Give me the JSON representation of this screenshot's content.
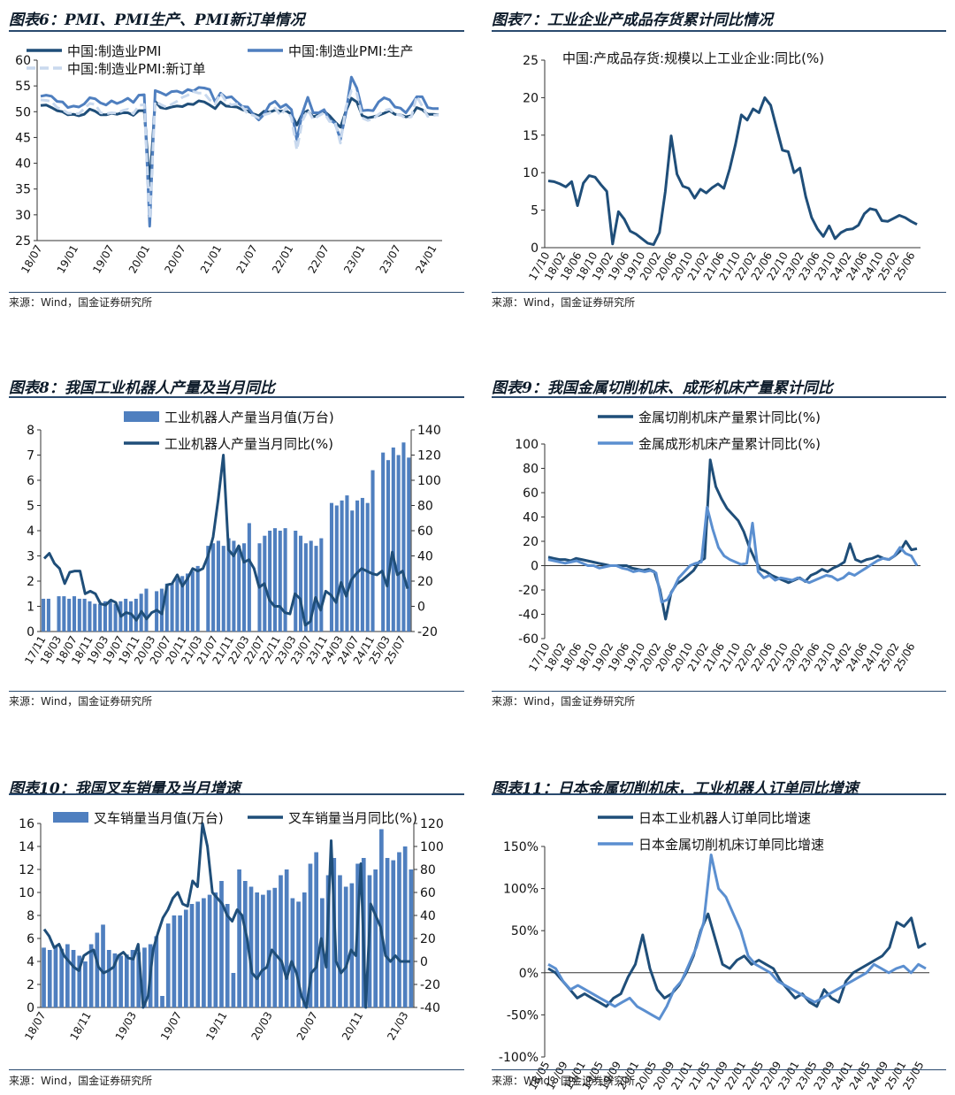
{
  "source_text": "来源：Wind，国金证券研究所",
  "colors": {
    "dark": "#1f4e79",
    "mid": "#4f7fbf",
    "light": "#c9d9ee",
    "bar": "#4f7fbf",
    "light_line": "#5b8fd0"
  },
  "chart_data": [
    {
      "id": "fig6",
      "type": "line",
      "title": "图表6：PMI、PMI生产、PMI新订单情况",
      "ylim": [
        25,
        60
      ],
      "yticks": [
        "25",
        "30",
        "35",
        "40",
        "45",
        "50",
        "55",
        "60"
      ],
      "xticks": [
        "18/07",
        "19/01",
        "19/07",
        "20/01",
        "20/07",
        "21/01",
        "21/07",
        "22/01",
        "22/07",
        "23/01",
        "23/07",
        "24/01"
      ],
      "legend": [
        "中国:制造业PMI",
        "中国:制造业PMI:生产",
        "中国:制造业PMI:新订单"
      ],
      "series": [
        {
          "name": "中国:制造业PMI",
          "values": [
            51.2,
            51.3,
            50.8,
            50.2,
            50.0,
            49.4,
            49.5,
            49.2,
            49.5,
            50.5,
            50.1,
            49.4,
            49.4,
            49.7,
            49.5,
            49.8,
            49.8,
            49.3,
            50.2,
            50.2,
            35.7,
            52.0,
            50.8,
            50.6,
            50.9,
            51.1,
            51.0,
            51.5,
            51.4,
            52.1,
            51.9,
            51.3,
            50.6,
            51.9,
            51.1,
            51.0,
            50.9,
            50.4,
            50.1,
            49.6,
            49.2,
            50.1,
            49.9,
            50.3,
            50.1,
            50.2,
            49.5,
            47.4,
            49.6,
            50.2,
            49.0,
            49.4,
            50.1,
            49.2,
            48.0,
            47.0,
            50.1,
            52.6,
            51.9,
            49.2,
            48.8,
            49.0,
            49.3,
            49.7,
            50.2,
            49.5,
            49.4,
            49.0,
            49.2,
            50.8,
            50.4,
            49.5,
            49.5,
            49.4
          ]
        },
        {
          "name": "中国:制造业PMI:生产",
          "values": [
            53.0,
            53.2,
            53.0,
            52.0,
            51.9,
            50.8,
            51.1,
            50.9,
            51.5,
            52.7,
            52.5,
            51.7,
            51.3,
            52.1,
            51.6,
            52.0,
            52.6,
            51.8,
            53.2,
            53.3,
            27.8,
            54.1,
            53.7,
            53.2,
            53.9,
            54.0,
            53.6,
            54.3,
            54.0,
            54.7,
            54.6,
            54.3,
            51.9,
            53.6,
            52.7,
            52.9,
            51.9,
            51.0,
            50.9,
            49.5,
            48.4,
            49.5,
            51.4,
            52.0,
            50.8,
            51.4,
            50.4,
            44.5,
            49.7,
            52.8,
            49.8,
            49.8,
            50.4,
            48.4,
            47.8,
            44.6,
            49.8,
            56.7,
            54.6,
            50.2,
            50.3,
            50.2,
            51.9,
            52.7,
            52.3,
            50.9,
            50.7,
            49.8,
            51.3,
            52.9,
            52.9,
            50.8,
            50.6,
            50.6
          ]
        },
        {
          "name": "中国:制造业PMI:新订单",
          "values": [
            52.3,
            52.2,
            52.0,
            50.8,
            50.4,
            49.7,
            49.7,
            49.6,
            50.6,
            51.6,
            51.4,
            49.8,
            49.6,
            49.8,
            49.7,
            50.2,
            50.5,
            49.6,
            51.2,
            51.4,
            29.3,
            52.0,
            51.4,
            50.9,
            51.4,
            52.0,
            52.8,
            53.2,
            53.9,
            53.6,
            53.6,
            52.3,
            51.5,
            53.6,
            52.0,
            51.3,
            51.5,
            50.9,
            49.6,
            49.3,
            48.8,
            49.4,
            49.7,
            50.7,
            49.3,
            50.7,
            48.8,
            42.6,
            48.2,
            50.4,
            48.5,
            49.2,
            49.8,
            48.1,
            48.1,
            43.9,
            50.9,
            54.1,
            53.6,
            48.8,
            48.3,
            48.6,
            49.5,
            50.2,
            50.5,
            49.5,
            49.4,
            48.7,
            49.0,
            53.0,
            51.1,
            49.1,
            49.3,
            49.4
          ]
        }
      ]
    },
    {
      "id": "fig7",
      "type": "line",
      "title": "图表7：工业企业产成品存货累计同比情况",
      "ylim": [
        0,
        25
      ],
      "yticks": [
        "0",
        "5",
        "10",
        "15",
        "20",
        "25"
      ],
      "xticks": [
        "17/10",
        "18/02",
        "18/06",
        "18/10",
        "19/02",
        "19/06",
        "19/10",
        "20/02",
        "20/06",
        "20/10",
        "21/02",
        "21/06",
        "21/10",
        "22/02",
        "22/06",
        "22/10",
        "23/02",
        "23/06",
        "23/10",
        "24/02",
        "24/06",
        "24/10",
        "25/02",
        "25/06"
      ],
      "legend": [
        "中国:产成品存货:规模以上工业企业:同比(%)"
      ],
      "series": [
        {
          "name": "中国:产成品存货:规模以上工业企业:同比(%)",
          "values": [
            8.9,
            8.8,
            8.5,
            8.1,
            8.8,
            5.6,
            8.6,
            9.6,
            9.4,
            8.4,
            7.5,
            0.5,
            4.8,
            3.8,
            2.2,
            1.8,
            1.2,
            0.6,
            0.4,
            2.0,
            7.5,
            14.9,
            9.8,
            8.2,
            7.9,
            6.6,
            7.8,
            7.3,
            8.0,
            8.5,
            7.9,
            10.5,
            13.8,
            17.7,
            17.0,
            18.5,
            18.0,
            20.0,
            19.0,
            16.0,
            13.0,
            12.8,
            10.0,
            10.6,
            6.8,
            4.0,
            2.5,
            1.5,
            2.9,
            1.2,
            2.0,
            2.4,
            2.5,
            3.0,
            4.5,
            5.2,
            5.0,
            3.6,
            3.5,
            3.9,
            4.3,
            4.0,
            3.5,
            3.1
          ]
        }
      ]
    },
    {
      "id": "fig8",
      "type": "bar+line",
      "title": "图表8：我国工业机器人产量及当月同比",
      "ylim": [
        0,
        8
      ],
      "y2lim": [
        -20,
        140
      ],
      "yticks": [
        "0",
        "1",
        "2",
        "3",
        "4",
        "5",
        "6",
        "7",
        "8"
      ],
      "y2ticks": [
        "-20",
        "0",
        "20",
        "40",
        "60",
        "80",
        "100",
        "120",
        "140"
      ],
      "xticks": [
        "17/11",
        "18/03",
        "18/07",
        "18/11",
        "19/03",
        "19/07",
        "19/11",
        "20/03",
        "20/07",
        "20/11",
        "21/03",
        "21/07",
        "21/11",
        "22/03",
        "22/07",
        "22/11",
        "23/03",
        "23/07",
        "23/11",
        "24/03",
        "24/07",
        "24/11",
        "25/03",
        "25/07"
      ],
      "legend": [
        "工业机器人产量当月值(万台)",
        "工业机器人产量当月同比(%)"
      ],
      "bars": {
        "name": "工业机器人产量当月值(万台)",
        "values": [
          1.3,
          1.3,
          0,
          1.4,
          1.4,
          1.3,
          1.4,
          1.3,
          1.3,
          1.2,
          1.1,
          1.1,
          1.2,
          1.2,
          1.1,
          1.2,
          1.3,
          1.2,
          1.3,
          1.5,
          1.7,
          0,
          1.6,
          1.7,
          1.9,
          1.9,
          2.1,
          2.2,
          2.3,
          2.4,
          2.6,
          0,
          3.4,
          3.5,
          3.6,
          3.4,
          3.7,
          3.6,
          3.4,
          3.5,
          4.3,
          0,
          3.5,
          3.8,
          4.0,
          4.1,
          4.0,
          4.1,
          0,
          4.0,
          3.8,
          3.5,
          3.6,
          3.4,
          3.7,
          0,
          5.1,
          5.0,
          5.2,
          5.4,
          4.8,
          5.2,
          5.3,
          5.1,
          6.4,
          0,
          7.1,
          6.8,
          7.3,
          7.0,
          7.5,
          6.9
        ]
      },
      "series": [
        {
          "name": "工业机器人产量当月同比(%)",
          "values": [
            38,
            42,
            34,
            30,
            18,
            27,
            28,
            28,
            10,
            12,
            10,
            2,
            1,
            5,
            3,
            -8,
            -5,
            -6,
            -11,
            -4,
            -10,
            -5,
            -3,
            -6,
            17,
            18,
            25,
            16,
            22,
            30,
            28,
            30,
            40,
            55,
            85,
            120,
            45,
            40,
            48,
            35,
            37,
            30,
            15,
            18,
            5,
            0,
            0,
            -5,
            -6,
            10,
            6,
            -15,
            -12,
            7,
            -3,
            12,
            9,
            3,
            19,
            8,
            21,
            26,
            30,
            28,
            26,
            25,
            28,
            16,
            43,
            25,
            28,
            14
          ]
        }
      ]
    },
    {
      "id": "fig9",
      "type": "line",
      "title": "图表9：我国金属切削机床、成形机床产量累计同比",
      "ylim": [
        -60,
        100
      ],
      "yticks": [
        "-60",
        "-40",
        "-20",
        "0",
        "20",
        "40",
        "60",
        "80",
        "100"
      ],
      "xticks": [
        "17/10",
        "18/02",
        "18/06",
        "18/10",
        "19/02",
        "19/06",
        "19/10",
        "20/02",
        "20/06",
        "20/10",
        "21/02",
        "21/06",
        "21/10",
        "22/02",
        "22/06",
        "22/10",
        "23/02",
        "23/06",
        "23/10",
        "24/02",
        "24/06",
        "24/10",
        "25/02",
        "25/06"
      ],
      "legend": [
        "金属切削机床产量累计同比(%)",
        "金属成形机床产量累计同比(%)"
      ],
      "series": [
        {
          "name": "金属切削机床产量累计同比(%)",
          "values": [
            7,
            6,
            5,
            5,
            4,
            6,
            5,
            4,
            3,
            2,
            1,
            0,
            0,
            0,
            0,
            -2,
            -3,
            -4,
            -3,
            -5,
            -20,
            -44,
            -22,
            -15,
            -12,
            -8,
            -4,
            3,
            6,
            87,
            65,
            55,
            47,
            42,
            37,
            28,
            15,
            5,
            -3,
            -5,
            -8,
            -10,
            -12,
            -14,
            -12,
            -10,
            -13,
            -8,
            -6,
            -3,
            -5,
            -2,
            0,
            3,
            18,
            5,
            3,
            5,
            6,
            8,
            6,
            5,
            8,
            12,
            20,
            13,
            14
          ]
        },
        {
          "name": "金属成形机床产量累计同比(%)",
          "values": [
            5,
            4,
            3,
            2,
            3,
            4,
            2,
            0,
            0,
            -2,
            -1,
            0,
            0,
            -2,
            -3,
            -5,
            -4,
            -5,
            -4,
            -6,
            -30,
            -28,
            -20,
            -10,
            -5,
            0,
            2,
            3,
            48,
            30,
            15,
            8,
            5,
            3,
            1,
            2,
            35,
            -5,
            -10,
            -8,
            -12,
            -10,
            -11,
            -12,
            -10,
            -12,
            -14,
            -12,
            -10,
            -8,
            -9,
            -12,
            -10,
            -6,
            -8,
            -5,
            -2,
            1,
            4,
            6,
            5,
            8,
            15,
            10,
            8,
            0
          ]
        }
      ]
    },
    {
      "id": "fig10",
      "type": "bar+line",
      "title": "图表10：我国叉车销量及当月增速",
      "ylim": [
        0,
        16
      ],
      "y2lim": [
        -40,
        120
      ],
      "yticks": [
        "0",
        "2",
        "4",
        "6",
        "8",
        "10",
        "12",
        "14",
        "16"
      ],
      "y2ticks": [
        "-40",
        "-20",
        "0",
        "20",
        "40",
        "60",
        "80",
        "100",
        "120"
      ],
      "xticks": [
        "18/07",
        "18/11",
        "19/03",
        "19/07",
        "19/11",
        "20/03",
        "20/07",
        "20/11",
        "21/03"
      ],
      "legend": [
        "叉车销量当月值(万台)",
        "叉车销量当月同比(%)"
      ],
      "bars": {
        "name": "叉车销量当月值(万台)",
        "values": [
          5.2,
          5.0,
          5.3,
          5.1,
          5.5,
          5.0,
          4.5,
          4.0,
          5.5,
          6.5,
          7.2,
          5.0,
          4.7,
          4.5,
          4.6,
          5.0,
          4.8,
          5.2,
          5.5,
          6.2,
          1.0,
          7.3,
          8.0,
          8.0,
          8.5,
          9.0,
          9.2,
          9.5,
          9.8,
          10.0,
          11.0,
          9.0,
          3.0,
          12.0,
          11.0,
          10.5,
          10.0,
          9.8,
          10.2,
          10.4,
          11.5,
          12.0,
          9.5,
          9.2,
          10.0,
          12.5,
          13.5,
          9.5,
          11.5,
          13.0,
          11.5,
          10.5,
          10.8,
          12.5,
          13.0,
          11.5,
          12.0,
          15.5,
          13.0,
          12.8,
          13.5,
          14.0,
          12.0
        ]
      },
      "series": [
        {
          "name": "叉车销量当月同比(%)",
          "values": [
            28,
            22,
            12,
            15,
            5,
            0,
            -5,
            -8,
            5,
            8,
            10,
            -5,
            -10,
            -8,
            -5,
            5,
            8,
            3,
            2,
            15,
            -40,
            -30,
            10,
            25,
            38,
            45,
            55,
            60,
            50,
            48,
            70,
            65,
            120,
            100,
            60,
            55,
            50,
            40,
            35,
            45,
            40,
            20,
            -10,
            -15,
            -8,
            -5,
            10,
            5,
            0,
            -15,
            0,
            -10,
            -30,
            -40,
            -10,
            -5,
            20,
            -5,
            105,
            0,
            -10,
            -5,
            10,
            5,
            85,
            -40,
            50,
            40,
            30,
            5,
            0,
            5,
            0,
            0,
            0
          ]
        }
      ]
    },
    {
      "id": "fig11",
      "type": "line",
      "title": "图表11：日本金属切削机床，工业机器人订单同比增速",
      "ylim": [
        -100,
        150
      ],
      "yticks": [
        "-100%",
        "-50%",
        "0%",
        "50%",
        "100%",
        "150%"
      ],
      "xticks": [
        "18/05",
        "18/09",
        "19/01",
        "19/05",
        "19/09",
        "20/01",
        "20/05",
        "20/09",
        "21/01",
        "21/05",
        "21/09",
        "22/01",
        "22/05",
        "22/09",
        "23/01",
        "23/05",
        "23/09",
        "24/01",
        "24/05",
        "24/09",
        "25/01",
        "25/05"
      ],
      "legend": [
        "日本工业机器人订单同比增速",
        "日本金属切削机床订单同比增速"
      ],
      "series": [
        {
          "name": "日本工业机器人订单同比增速",
          "values": [
            5,
            0,
            -10,
            -20,
            -30,
            -25,
            -30,
            -35,
            -40,
            -30,
            -25,
            -5,
            10,
            45,
            5,
            -20,
            -30,
            -25,
            -15,
            0,
            20,
            50,
            70,
            40,
            10,
            5,
            15,
            20,
            10,
            15,
            10,
            5,
            -10,
            -20,
            -30,
            -25,
            -35,
            -40,
            -20,
            -30,
            -35,
            -10,
            0,
            5,
            10,
            15,
            20,
            30,
            60,
            55,
            65,
            30,
            35
          ]
        },
        {
          "name": "日本金属切削机床订单同比增速",
          "values": [
            10,
            5,
            -10,
            -20,
            -15,
            -20,
            -25,
            -30,
            -35,
            -40,
            -35,
            -30,
            -40,
            -45,
            -50,
            -55,
            -40,
            -20,
            -10,
            10,
            30,
            60,
            140,
            100,
            90,
            70,
            50,
            20,
            10,
            5,
            0,
            -10,
            -15,
            -20,
            -25,
            -30,
            -35,
            -30,
            -25,
            -20,
            -15,
            -10,
            -5,
            0,
            10,
            5,
            0,
            5,
            8,
            0,
            10,
            5
          ]
        }
      ]
    }
  ]
}
